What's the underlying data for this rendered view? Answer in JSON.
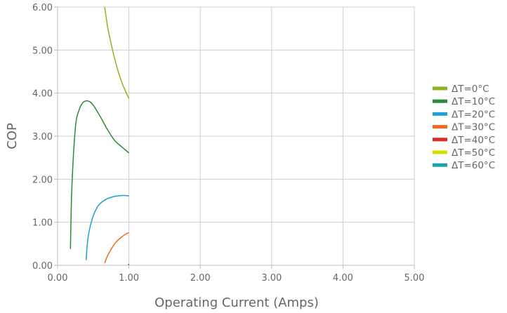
{
  "chart_data": {
    "type": "line",
    "title": "",
    "xlabel": "Operating Current (Amps)",
    "ylabel": "COP",
    "xlim": [
      0,
      5
    ],
    "ylim": [
      0,
      6
    ],
    "x_ticks": [
      "0.00",
      "1.00",
      "2.00",
      "3.00",
      "4.00",
      "5.00"
    ],
    "y_ticks": [
      "0.00",
      "1.00",
      "2.00",
      "3.00",
      "4.00",
      "5.00",
      "6.00"
    ],
    "grid": true,
    "legend_position": "right",
    "series": [
      {
        "name": "ΔT=0°C",
        "color": "#8db61c",
        "x": [
          0.66,
          0.7,
          0.75,
          0.8,
          0.85,
          0.9,
          0.95,
          1.0
        ],
        "y": [
          6.0,
          5.55,
          5.15,
          4.8,
          4.5,
          4.25,
          4.05,
          3.87
        ]
      },
      {
        "name": "ΔT=10°C",
        "color": "#2e8b3a",
        "x": [
          0.18,
          0.2,
          0.25,
          0.3,
          0.35,
          0.4,
          0.45,
          0.5,
          0.6,
          0.7,
          0.8,
          0.9,
          1.0
        ],
        "y": [
          0.38,
          1.8,
          3.2,
          3.6,
          3.77,
          3.82,
          3.8,
          3.72,
          3.45,
          3.15,
          2.9,
          2.75,
          2.61
        ]
      },
      {
        "name": "ΔT=20°C",
        "color": "#1f9fd5",
        "x": [
          0.4,
          0.42,
          0.45,
          0.5,
          0.55,
          0.6,
          0.7,
          0.8,
          0.9,
          0.95,
          1.0
        ],
        "y": [
          0.12,
          0.55,
          0.85,
          1.15,
          1.33,
          1.44,
          1.55,
          1.6,
          1.62,
          1.62,
          1.61
        ]
      },
      {
        "name": "ΔT=30°C",
        "color": "#f26b1d",
        "x": [
          0.66,
          0.7,
          0.75,
          0.8,
          0.85,
          0.9,
          0.95,
          1.0
        ],
        "y": [
          0.05,
          0.22,
          0.37,
          0.5,
          0.59,
          0.66,
          0.72,
          0.76
        ]
      },
      {
        "name": "ΔT=40°C",
        "color": "#e02a2a",
        "x": [
          0.99,
          1.0
        ],
        "y": [
          0.01,
          0.03
        ]
      },
      {
        "name": "ΔT=50°C",
        "color": "#d4e000",
        "x": [],
        "y": []
      },
      {
        "name": "ΔT=60°C",
        "color": "#1aa3ad",
        "x": [],
        "y": []
      }
    ]
  }
}
